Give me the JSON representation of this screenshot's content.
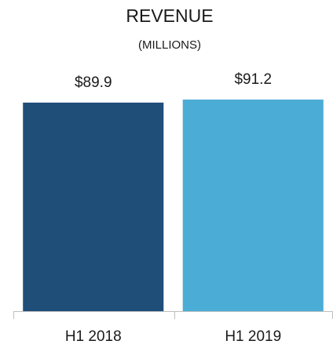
{
  "chart_data": {
    "type": "bar",
    "title": "REVENUE",
    "subtitle": "(MILLIONS)",
    "categories": [
      "H1 2018",
      "H1 2019"
    ],
    "values": [
      89.9,
      91.2
    ],
    "value_labels": [
      "$89.9",
      "$91.2"
    ],
    "colors": [
      "#1f4e79",
      "#4bacd6"
    ],
    "ylim": [
      0,
      100
    ]
  }
}
